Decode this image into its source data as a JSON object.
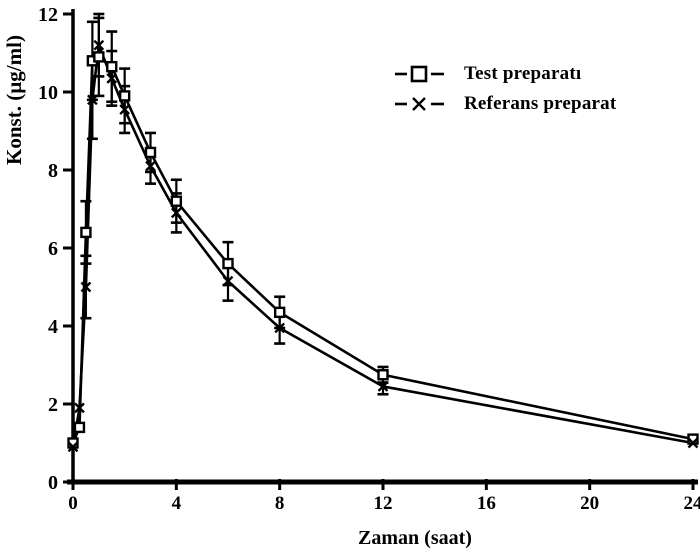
{
  "figure": {
    "background": "#ffffff",
    "ink": "#000000"
  },
  "chart_data": {
    "type": "line",
    "title": "",
    "xlabel": "Zaman (saat)",
    "ylabel": "Konst. (µg/ml)",
    "xlim": [
      0,
      24
    ],
    "ylim": [
      0,
      12
    ],
    "x_ticks": [
      0,
      4,
      8,
      12,
      16,
      20,
      24
    ],
    "y_ticks": [
      0,
      2,
      4,
      6,
      8,
      10,
      12
    ],
    "grid": false,
    "legend_position": "upper-right",
    "x": [
      0,
      0.25,
      0.5,
      0.75,
      1,
      1.5,
      2,
      3,
      4,
      6,
      8,
      12,
      24
    ],
    "series": [
      {
        "name": "Test preparatı",
        "marker": "open-square",
        "values": [
          1.0,
          1.4,
          6.4,
          10.8,
          10.9,
          10.65,
          9.9,
          8.45,
          7.2,
          5.6,
          4.35,
          2.75,
          1.1
        ],
        "errors": [
          0,
          0,
          0.8,
          1.0,
          1.0,
          0.9,
          0.7,
          0.5,
          0.55,
          0.55,
          0.4,
          0.2,
          0
        ]
      },
      {
        "name": "Referans preparat",
        "marker": "x-cross",
        "values": [
          0.9,
          1.9,
          5.0,
          9.8,
          11.2,
          10.35,
          9.55,
          8.1,
          6.9,
          5.15,
          3.95,
          2.45,
          1.0
        ],
        "errors": [
          0,
          0,
          0.8,
          1.0,
          0.8,
          0.7,
          0.6,
          0.45,
          0.5,
          0.5,
          0.4,
          0.2,
          0
        ]
      }
    ]
  },
  "legend": {
    "items": [
      {
        "marker_icon": "open-square",
        "label": "Test preparatı"
      },
      {
        "marker_icon": "x-cross",
        "label": "Referans preparat"
      }
    ]
  }
}
